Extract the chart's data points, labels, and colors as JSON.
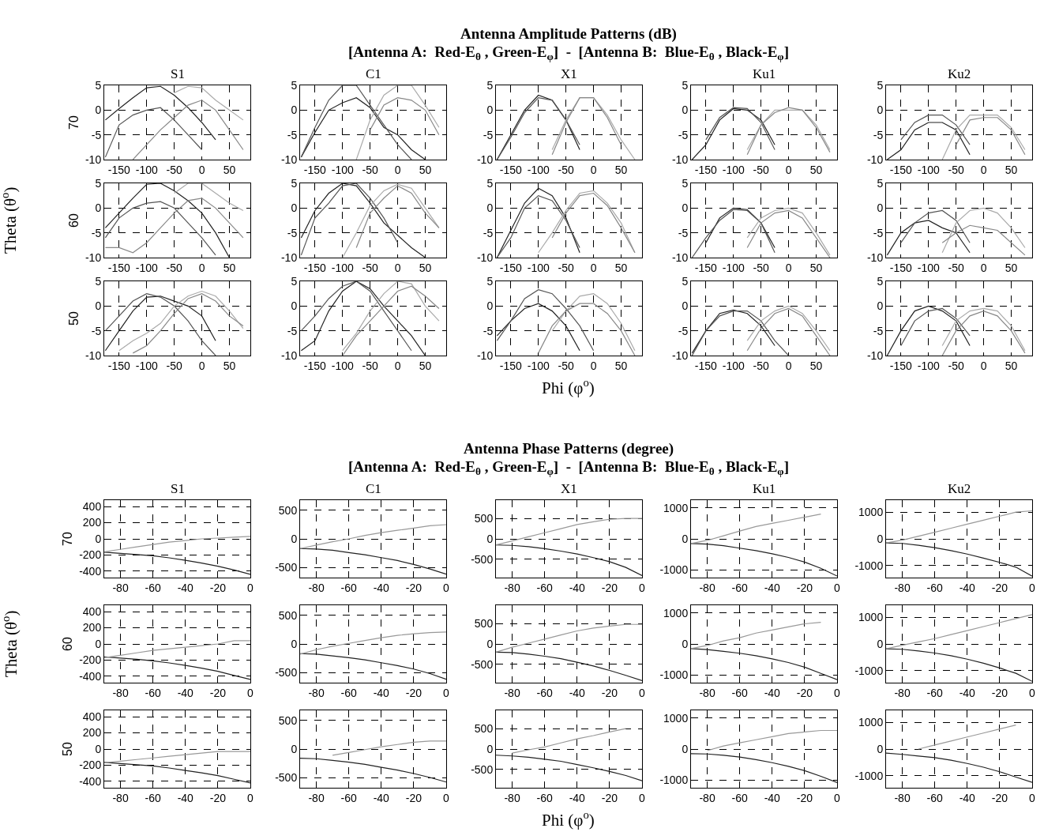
{
  "chart_data": [
    {
      "type": "line",
      "title": "S1",
      "ylabel": "70",
      "annotations": [
        "Antenna Amplitude Patterns (dB)",
        "[Antenna A:  Red-E$_{θ}$ , Green-E$_{φ}$]  -  [Antenna B:  Blue-E$_{θ}$ , Black-E$_{φ}$]",
        "Theta (θ$^{o}$)",
        "Phi (φ$^{o}$)"
      ],
      "xlim": [
        -177,
        88
      ],
      "ylim": [
        -10,
        5
      ],
      "xticks": [
        -150,
        -100,
        -50,
        0,
        50
      ],
      "yticks": [
        -10,
        -5,
        0,
        5
      ],
      "grid": true,
      "x": [
        -175,
        -150,
        -125,
        -100,
        -75,
        -50,
        -25,
        0,
        25,
        50,
        75
      ],
      "series": [
        {
          "color": "#222222",
          "values": [
            -2,
            0.3,
            2.5,
            4.5,
            4.8,
            3,
            0.5,
            -2.5,
            -6,
            null,
            null
          ]
        },
        {
          "color": "#555555",
          "values": [
            -9.5,
            -3,
            -1,
            0,
            0.5,
            -2,
            -5,
            -8,
            null,
            null,
            null
          ]
        },
        {
          "color": "#aaaaaa",
          "values": [
            null,
            null,
            null,
            null,
            null,
            3.5,
            4.8,
            4.5,
            2,
            0,
            -2
          ]
        },
        {
          "color": "#888888",
          "values": [
            null,
            null,
            -10,
            -7,
            -4,
            -1.5,
            1,
            2,
            0,
            -4,
            -8
          ]
        }
      ]
    },
    {
      "type": "line",
      "title": "C1",
      "xlim": [
        -177,
        88
      ],
      "ylim": [
        -10,
        5
      ],
      "xticks": [
        -150,
        -100,
        -50,
        0,
        50
      ],
      "yticks": [
        -10,
        -5,
        0,
        5
      ],
      "grid": true,
      "x": [
        -175,
        -150,
        -125,
        -100,
        -75,
        -50,
        -25,
        0,
        25,
        50,
        75
      ],
      "series": [
        {
          "color": "#222222",
          "values": [
            -9.5,
            -4.5,
            0,
            1.5,
            2.5,
            0.5,
            -3.5,
            -5,
            -8,
            -10,
            null
          ]
        },
        {
          "color": "#555555",
          "values": [
            -9.5,
            -3.5,
            2,
            5,
            5,
            1,
            -3,
            -7,
            -10,
            null,
            null
          ]
        },
        {
          "color": "#aaaaaa",
          "values": [
            null,
            null,
            null,
            null,
            -10,
            -2,
            3,
            5,
            5,
            1,
            -3.5
          ]
        },
        {
          "color": "#888888",
          "values": [
            null,
            null,
            null,
            null,
            null,
            -4,
            1,
            2.5,
            2,
            0,
            -5
          ]
        }
      ]
    },
    {
      "type": "line",
      "title": "X1",
      "xlim": [
        -177,
        88
      ],
      "ylim": [
        -10,
        5
      ],
      "xticks": [
        -150,
        -100,
        -50,
        0,
        50
      ],
      "yticks": [
        -10,
        -5,
        0,
        5
      ],
      "grid": true,
      "x": [
        -175,
        -150,
        -125,
        -100,
        -75,
        -50,
        -25,
        0,
        25,
        50,
        75
      ],
      "series": [
        {
          "color": "#222222",
          "values": [
            -10,
            -5,
            0,
            3,
            2,
            -2,
            -8,
            null,
            null,
            null,
            null
          ]
        },
        {
          "color": "#555555",
          "values": [
            -10,
            -5.5,
            -0.5,
            2.5,
            2,
            -2,
            -7,
            null,
            null,
            null,
            null
          ]
        },
        {
          "color": "#aaaaaa",
          "values": [
            null,
            null,
            null,
            null,
            -8,
            -2,
            2.5,
            2.5,
            -1,
            -6,
            -10
          ]
        },
        {
          "color": "#888888",
          "values": [
            null,
            null,
            null,
            null,
            -9,
            -2.5,
            2.5,
            2.5,
            -1.5,
            -7,
            null
          ]
        }
      ]
    },
    {
      "type": "line",
      "title": "Ku1",
      "xlim": [
        -177,
        88
      ],
      "ylim": [
        -10,
        5
      ],
      "xticks": [
        -150,
        -100,
        -50,
        0,
        50
      ],
      "yticks": [
        -10,
        -5,
        0,
        5
      ],
      "grid": true,
      "x": [
        -175,
        -150,
        -125,
        -100,
        -75,
        -50,
        -25,
        0,
        25,
        50,
        75
      ],
      "series": [
        {
          "color": "#222222",
          "values": [
            -10,
            -7,
            -2,
            0.3,
            0,
            -2,
            -7,
            null,
            null,
            null,
            null
          ]
        },
        {
          "color": "#555555",
          "values": [
            null,
            -6,
            -1.5,
            0.5,
            0.3,
            -2.5,
            -8,
            null,
            null,
            null,
            null
          ]
        },
        {
          "color": "#aaaaaa",
          "values": [
            null,
            null,
            null,
            null,
            -8,
            -3,
            0,
            0,
            0,
            -3,
            -8
          ]
        },
        {
          "color": "#888888",
          "values": [
            null,
            null,
            null,
            null,
            -9,
            -3,
            -0.5,
            0.5,
            0,
            -3.5,
            -8.5
          ]
        }
      ]
    },
    {
      "type": "line",
      "title": "Ku2",
      "xlim": [
        -177,
        88
      ],
      "ylim": [
        -10,
        5
      ],
      "xticks": [
        -150,
        -100,
        -50,
        0,
        50
      ],
      "yticks": [
        -10,
        -5,
        0,
        5
      ],
      "grid": true,
      "x": [
        -175,
        -150,
        -125,
        -100,
        -75,
        -50,
        -25,
        0,
        25,
        50,
        75
      ],
      "series": [
        {
          "color": "#222222",
          "values": [
            -10,
            -8,
            -4,
            -2.5,
            -2.5,
            -4,
            -9,
            null,
            null,
            null,
            null
          ]
        },
        {
          "color": "#555555",
          "values": [
            null,
            -6,
            -2.5,
            -1,
            -1,
            -3,
            -7,
            null,
            null,
            null,
            null
          ]
        },
        {
          "color": "#aaaaaa",
          "values": [
            null,
            null,
            null,
            null,
            -10,
            -4,
            -1,
            -1,
            -1,
            -3.5,
            -8
          ]
        },
        {
          "color": "#888888",
          "values": [
            null,
            null,
            null,
            null,
            null,
            -7,
            -2,
            -1.5,
            -1.5,
            -4,
            -9
          ]
        }
      ]
    },
    {
      "type": "line",
      "ylabel": "60",
      "xlim": [
        -177,
        88
      ],
      "ylim": [
        -10,
        5
      ],
      "xticks": [
        -150,
        -100,
        -50,
        0,
        50
      ],
      "yticks": [
        -10,
        -5,
        0,
        5
      ],
      "grid": true,
      "x": [
        -175,
        -150,
        -125,
        -100,
        -75,
        -50,
        -25,
        0,
        25,
        50,
        75
      ],
      "series": [
        {
          "color": "#222222",
          "values": [
            -4,
            -1,
            2,
            4.8,
            5,
            3.5,
            1.5,
            -1,
            -5,
            -10,
            null
          ]
        },
        {
          "color": "#555555",
          "values": [
            -6,
            -2,
            0,
            1,
            1.3,
            0,
            -3,
            -6,
            -9.5,
            null,
            null
          ]
        },
        {
          "color": "#aaaaaa",
          "values": [
            null,
            null,
            null,
            null,
            null,
            3,
            5,
            5,
            3,
            1,
            -0.5
          ]
        },
        {
          "color": "#888888",
          "values": [
            -8,
            -8,
            -9,
            -7,
            -4,
            -1,
            1.5,
            2,
            0,
            -3,
            -6
          ]
        }
      ]
    },
    {
      "type": "line",
      "xlim": [
        -177,
        88
      ],
      "ylim": [
        -10,
        5
      ],
      "xticks": [
        -150,
        -100,
        -50,
        0,
        50
      ],
      "yticks": [
        -10,
        -5,
        0,
        5
      ],
      "grid": true,
      "x": [
        -175,
        -150,
        -125,
        -100,
        -75,
        -50,
        -25,
        0,
        25,
        50,
        75
      ],
      "series": [
        {
          "color": "#222222",
          "values": [
            -6,
            -0.5,
            3,
            5,
            4.5,
            1,
            -3,
            -5.5,
            -8,
            -10,
            null
          ]
        },
        {
          "color": "#555555",
          "values": [
            -9.5,
            -2,
            1,
            4.5,
            5,
            2,
            -2,
            -7,
            null,
            null,
            null
          ]
        },
        {
          "color": "#aaaaaa",
          "values": [
            null,
            null,
            null,
            -10,
            -5,
            0.5,
            3.5,
            4.8,
            4,
            0,
            -4
          ]
        },
        {
          "color": "#888888",
          "values": [
            null,
            null,
            null,
            null,
            -8,
            -1,
            2,
            4.5,
            3,
            -1,
            -4
          ]
        }
      ]
    },
    {
      "type": "line",
      "xlim": [
        -177,
        88
      ],
      "ylim": [
        -10,
        5
      ],
      "xticks": [
        -150,
        -100,
        -50,
        0,
        50
      ],
      "yticks": [
        -10,
        -5,
        0,
        5
      ],
      "grid": true,
      "x": [
        -175,
        -150,
        -125,
        -100,
        -75,
        -50,
        -25,
        0,
        25,
        50,
        75
      ],
      "series": [
        {
          "color": "#222222",
          "values": [
            -10,
            -4.5,
            1,
            4,
            2.5,
            -2,
            -9,
            null,
            null,
            null,
            null
          ]
        },
        {
          "color": "#555555",
          "values": [
            -10,
            -6,
            0,
            2.5,
            1.5,
            -2.5,
            -8,
            null,
            null,
            null,
            null
          ]
        },
        {
          "color": "#aaaaaa",
          "values": [
            null,
            null,
            null,
            -9,
            -5,
            -0.5,
            3,
            3.5,
            1,
            -3,
            -9
          ]
        },
        {
          "color": "#888888",
          "values": [
            null,
            null,
            null,
            null,
            -6,
            -1,
            2.5,
            3,
            0.5,
            -4,
            -9
          ]
        }
      ]
    },
    {
      "type": "line",
      "xlim": [
        -177,
        88
      ],
      "ylim": [
        -10,
        5
      ],
      "xticks": [
        -150,
        -100,
        -50,
        0,
        50
      ],
      "yticks": [
        -10,
        -5,
        0,
        5
      ],
      "grid": true,
      "x": [
        -175,
        -150,
        -125,
        -100,
        -75,
        -50,
        -25,
        0,
        25,
        50,
        75
      ],
      "series": [
        {
          "color": "#222222",
          "values": [
            null,
            -7,
            -2,
            0,
            -0.3,
            -3,
            -8,
            null,
            null,
            null,
            null
          ]
        },
        {
          "color": "#555555",
          "values": [
            -10,
            -6,
            -2.5,
            -0.3,
            -0.5,
            -3,
            -9,
            null,
            null,
            null,
            null
          ]
        },
        {
          "color": "#aaaaaa",
          "values": [
            null,
            null,
            null,
            null,
            -6,
            -2,
            -0.5,
            0,
            -1,
            -5,
            -9.5
          ]
        },
        {
          "color": "#888888",
          "values": [
            null,
            null,
            null,
            null,
            -8,
            -3,
            -1,
            -0.5,
            -2,
            -6,
            -10
          ]
        }
      ]
    },
    {
      "type": "line",
      "xlim": [
        -177,
        88
      ],
      "ylim": [
        -10,
        5
      ],
      "xticks": [
        -150,
        -100,
        -50,
        0,
        50
      ],
      "yticks": [
        -10,
        -5,
        0,
        5
      ],
      "grid": true,
      "x": [
        -175,
        -150,
        -125,
        -100,
        -75,
        -50,
        -25,
        0,
        25,
        50,
        75
      ],
      "series": [
        {
          "color": "#222222",
          "values": [
            -9.5,
            -5,
            -3,
            -2.5,
            -4,
            -5,
            -9,
            null,
            null,
            null,
            null
          ]
        },
        {
          "color": "#555555",
          "values": [
            null,
            -7,
            -3,
            -1,
            -0.5,
            -2.5,
            -7,
            null,
            null,
            null,
            null
          ]
        },
        {
          "color": "#aaaaaa",
          "values": [
            null,
            null,
            null,
            null,
            -9,
            -3,
            -0.5,
            0,
            -1,
            -4,
            -8
          ]
        },
        {
          "color": "#888888",
          "values": [
            null,
            null,
            null,
            null,
            -7,
            -5,
            -3.5,
            -4,
            -4.5,
            -7,
            -9.5
          ]
        }
      ]
    },
    {
      "type": "line",
      "ylabel": "50",
      "xlim": [
        -177,
        88
      ],
      "ylim": [
        -10,
        5
      ],
      "xticks": [
        -150,
        -100,
        -50,
        0,
        50
      ],
      "yticks": [
        -10,
        -5,
        0,
        5
      ],
      "grid": true,
      "x": [
        -175,
        -150,
        -125,
        -100,
        -75,
        -50,
        -25,
        0,
        25,
        50,
        75
      ],
      "series": [
        {
          "color": "#222222",
          "values": [
            -9,
            -5,
            -1,
            1.8,
            2,
            1,
            0,
            -2,
            -7,
            null,
            null
          ]
        },
        {
          "color": "#555555",
          "values": [
            -5,
            -2,
            1,
            2.5,
            1.8,
            0,
            -3,
            -7,
            -10,
            null,
            null
          ]
        },
        {
          "color": "#aaaaaa",
          "values": [
            null,
            -9,
            -7,
            -5.5,
            -3.5,
            0,
            2,
            3,
            2,
            -1,
            -4.5
          ]
        },
        {
          "color": "#888888",
          "values": [
            null,
            null,
            -9.5,
            -8,
            -5,
            -1.5,
            1.5,
            2.5,
            1,
            -2,
            -4
          ]
        }
      ]
    },
    {
      "type": "line",
      "xlim": [
        -177,
        88
      ],
      "ylim": [
        -10,
        5
      ],
      "xticks": [
        -150,
        -100,
        -50,
        0,
        50
      ],
      "yticks": [
        -10,
        -5,
        0,
        5
      ],
      "grid": true,
      "x": [
        -175,
        -150,
        -125,
        -100,
        -75,
        -50,
        -25,
        0,
        25,
        50,
        75
      ],
      "series": [
        {
          "color": "#222222",
          "values": [
            -9,
            -7,
            -1,
            3,
            5,
            3.5,
            0,
            -3,
            -6,
            -10,
            null
          ]
        },
        {
          "color": "#555555",
          "values": [
            -5,
            -2,
            1.5,
            4,
            5,
            3,
            -1,
            -5,
            -9,
            null,
            null
          ]
        },
        {
          "color": "#aaaaaa",
          "values": [
            null,
            null,
            null,
            -9,
            -5.5,
            -1,
            2.5,
            5,
            4.5,
            0,
            -3
          ]
        },
        {
          "color": "#888888",
          "values": [
            null,
            null,
            null,
            -10,
            -6,
            -3,
            0,
            3,
            4,
            2,
            -0.5
          ]
        }
      ]
    },
    {
      "type": "line",
      "xlim": [
        -177,
        88
      ],
      "ylim": [
        -10,
        5
      ],
      "xticks": [
        -150,
        -100,
        -50,
        0,
        50
      ],
      "yticks": [
        -10,
        -5,
        0,
        5
      ],
      "grid": true,
      "x": [
        -175,
        -150,
        -125,
        -100,
        -75,
        -50,
        -25,
        0,
        25,
        50,
        75
      ],
      "series": [
        {
          "color": "#222222",
          "values": [
            -6,
            -3,
            -0.5,
            0.5,
            -1,
            -4,
            -9,
            null,
            null,
            null,
            null
          ]
        },
        {
          "color": "#555555",
          "values": [
            -7,
            -3,
            1.5,
            3.3,
            2.5,
            -0.5,
            -4,
            -9,
            null,
            null,
            null
          ]
        },
        {
          "color": "#aaaaaa",
          "values": [
            null,
            null,
            null,
            null,
            -5,
            -1,
            2,
            2.5,
            0.5,
            -3.5,
            -9
          ]
        },
        {
          "color": "#888888",
          "values": [
            null,
            null,
            null,
            -9.5,
            -4,
            -1,
            0.5,
            0.5,
            -1.5,
            -5,
            -10
          ]
        }
      ]
    },
    {
      "type": "line",
      "xlim": [
        -177,
        88
      ],
      "ylim": [
        -10,
        5
      ],
      "xticks": [
        -150,
        -100,
        -50,
        0,
        50
      ],
      "yticks": [
        -10,
        -5,
        0,
        5
      ],
      "grid": true,
      "x": [
        -175,
        -150,
        -125,
        -100,
        -75,
        -50,
        -25,
        0,
        25,
        50,
        75
      ],
      "series": [
        {
          "color": "#222222",
          "values": [
            -9.5,
            -5,
            -1.5,
            -0.8,
            -1.5,
            -4,
            -8,
            null,
            null,
            null,
            null
          ]
        },
        {
          "color": "#555555",
          "values": [
            -10,
            -5,
            -2,
            -1,
            -1,
            -3,
            -7,
            -10,
            null,
            null,
            null
          ]
        },
        {
          "color": "#aaaaaa",
          "values": [
            null,
            null,
            null,
            null,
            -7,
            -3,
            -1,
            0,
            -1.5,
            -5,
            -9
          ]
        },
        {
          "color": "#888888",
          "values": [
            null,
            null,
            null,
            null,
            -9,
            -4.5,
            -1.5,
            -0.5,
            -2,
            -6,
            -10
          ]
        }
      ]
    },
    {
      "type": "line",
      "xlim": [
        -177,
        88
      ],
      "ylim": [
        -10,
        5
      ],
      "xticks": [
        -150,
        -100,
        -50,
        0,
        50
      ],
      "yticks": [
        -10,
        -5,
        0,
        5
      ],
      "grid": true,
      "x": [
        -175,
        -150,
        -125,
        -100,
        -75,
        -50,
        -25,
        0,
        25,
        50,
        75
      ],
      "series": [
        {
          "color": "#222222",
          "values": [
            -10,
            -5,
            -1,
            0,
            -1,
            -3,
            -8,
            null,
            null,
            null,
            null
          ]
        },
        {
          "color": "#555555",
          "values": [
            null,
            -8,
            -3,
            -1,
            -0.5,
            -2.5,
            -6,
            null,
            null,
            null,
            null
          ]
        },
        {
          "color": "#aaaaaa",
          "values": [
            null,
            null,
            null,
            null,
            -8,
            -3,
            -1,
            -0.5,
            -1,
            -4,
            -9
          ]
        },
        {
          "color": "#888888",
          "values": [
            null,
            null,
            null,
            null,
            -10,
            -5,
            -2,
            -1,
            -2,
            -5,
            -9.5
          ]
        }
      ]
    },
    {
      "type": "line",
      "title": "S1",
      "ylabel": "70",
      "annotations": [
        "Antenna Phase Patterns (degree)",
        "[Antenna A:  Red-E$_{θ}$ , Green-E$_{φ}$]  -  [Antenna B:  Blue-E$_{θ}$ , Black-E$_{φ}$]",
        "Theta (θ$^{o}$)",
        "Phi (φ$^{o}$)"
      ],
      "xlim": [
        -90,
        0
      ],
      "ylim": [
        -480,
        480
      ],
      "xticks": [
        -80,
        -60,
        -40,
        -20,
        0
      ],
      "yticks": [
        -400,
        -200,
        0,
        200,
        400
      ],
      "grid": true,
      "x": [
        -90,
        -80,
        -70,
        -60,
        -50,
        -40,
        -30,
        -20,
        -10,
        0
      ],
      "series": [
        {
          "color": "#222222",
          "values": [
            -165,
            -180,
            -195,
            -210,
            -235,
            -265,
            -300,
            -340,
            -385,
            -440
          ]
        },
        {
          "color": "#999999",
          "values": [
            -160,
            -130,
            -100,
            -70,
            -40,
            -20,
            0,
            10,
            20,
            30
          ]
        }
      ]
    },
    {
      "type": "line",
      "title": "C1",
      "xlim": [
        -90,
        0
      ],
      "ylim": [
        -680,
        680
      ],
      "xticks": [
        -80,
        -60,
        -40,
        -20,
        0
      ],
      "yticks": [
        -500,
        0,
        500
      ],
      "grid": true,
      "x": [
        -90,
        -80,
        -70,
        -60,
        -50,
        -40,
        -30,
        -20,
        -10,
        0
      ],
      "series": [
        {
          "color": "#222222",
          "values": [
            -170,
            -180,
            -200,
            -240,
            -280,
            -330,
            -380,
            -450,
            -530,
            -620
          ]
        },
        {
          "color": "#999999",
          "values": [
            -170,
            -110,
            -50,
            0,
            60,
            110,
            150,
            190,
            230,
            250
          ]
        }
      ]
    },
    {
      "type": "line",
      "title": "X1",
      "xlim": [
        -90,
        0
      ],
      "ylim": [
        -950,
        950
      ],
      "xticks": [
        -80,
        -60,
        -40,
        -20,
        0
      ],
      "yticks": [
        -500,
        0,
        500
      ],
      "grid": true,
      "x": [
        -90,
        -80,
        -70,
        -60,
        -50,
        -40,
        -30,
        -20,
        -10,
        0
      ],
      "series": [
        {
          "color": "#222222",
          "values": [
            -150,
            -160,
            -190,
            -240,
            -300,
            -370,
            -460,
            -560,
            -700,
            -900
          ]
        },
        {
          "color": "#999999",
          "values": [
            -150,
            -50,
            50,
            150,
            250,
            350,
            420,
            480,
            500,
            500
          ]
        }
      ]
    },
    {
      "type": "line",
      "title": "Ku1",
      "xlim": [
        -90,
        0
      ],
      "ylim": [
        -1250,
        1250
      ],
      "xticks": [
        -80,
        -60,
        -40,
        -20,
        0
      ],
      "yticks": [
        -1000,
        0,
        1000
      ],
      "grid": true,
      "x": [
        -90,
        -80,
        -70,
        -60,
        -50,
        -40,
        -30,
        -20,
        -10,
        0
      ],
      "series": [
        {
          "color": "#222222",
          "values": [
            -150,
            -170,
            -220,
            -300,
            -380,
            -480,
            -600,
            -750,
            -950,
            -1200
          ]
        },
        {
          "color": "#999999",
          "values": [
            -150,
            -50,
            100,
            250,
            400,
            500,
            600,
            700,
            800,
            null
          ]
        }
      ]
    },
    {
      "type": "line",
      "title": "Ku2",
      "xlim": [
        -90,
        0
      ],
      "ylim": [
        -1450,
        1450
      ],
      "xticks": [
        -80,
        -60,
        -40,
        -20,
        0
      ],
      "yticks": [
        -1000,
        0,
        1000
      ],
      "grid": true,
      "x": [
        -90,
        -80,
        -70,
        -60,
        -50,
        -40,
        -30,
        -20,
        -10,
        0
      ],
      "series": [
        {
          "color": "#222222",
          "values": [
            -150,
            -170,
            -240,
            -330,
            -440,
            -570,
            -720,
            -880,
            -1060,
            -1400
          ]
        },
        {
          "color": "#999999",
          "values": [
            -150,
            -50,
            100,
            250,
            400,
            550,
            700,
            850,
            1000,
            1050
          ]
        }
      ]
    },
    {
      "type": "line",
      "ylabel": "60",
      "xlim": [
        -90,
        0
      ],
      "ylim": [
        -480,
        480
      ],
      "xticks": [
        -80,
        -60,
        -40,
        -20,
        0
      ],
      "yticks": [
        -400,
        -200,
        0,
        200,
        400
      ],
      "grid": true,
      "x": [
        -90,
        -80,
        -70,
        -60,
        -50,
        -40,
        -30,
        -20,
        -10,
        0
      ],
      "series": [
        {
          "color": "#222222",
          "values": [
            -160,
            -175,
            -190,
            -210,
            -235,
            -265,
            -300,
            -340,
            -390,
            -440
          ]
        },
        {
          "color": "#999999",
          "values": [
            -170,
            -140,
            -110,
            -80,
            -60,
            -40,
            -20,
            0,
            40,
            40
          ]
        }
      ]
    },
    {
      "type": "line",
      "xlim": [
        -90,
        0
      ],
      "ylim": [
        -680,
        680
      ],
      "xticks": [
        -80,
        -60,
        -40,
        -20,
        0
      ],
      "yticks": [
        -500,
        0,
        500
      ],
      "grid": true,
      "x": [
        -90,
        -80,
        -70,
        -60,
        -50,
        -40,
        -30,
        -20,
        -10,
        0
      ],
      "series": [
        {
          "color": "#222222",
          "values": [
            -170,
            -180,
            -210,
            -240,
            -280,
            -330,
            -380,
            -440,
            -520,
            -620
          ]
        },
        {
          "color": "#999999",
          "values": [
            -180,
            -100,
            -40,
            10,
            60,
            110,
            150,
            180,
            200,
            210
          ]
        }
      ]
    },
    {
      "type": "line",
      "xlim": [
        -90,
        0
      ],
      "ylim": [
        -950,
        950
      ],
      "xticks": [
        -80,
        -60,
        -40,
        -20,
        0
      ],
      "yticks": [
        -500,
        0,
        500
      ],
      "grid": true,
      "x": [
        -90,
        -80,
        -70,
        -60,
        -50,
        -40,
        -30,
        -20,
        -10,
        0
      ],
      "series": [
        {
          "color": "#222222",
          "values": [
            -200,
            -210,
            -250,
            -300,
            -360,
            -450,
            -540,
            -650,
            -770,
            -900
          ]
        },
        {
          "color": "#999999",
          "values": [
            -200,
            -80,
            20,
            120,
            220,
            320,
            390,
            440,
            480,
            480
          ]
        }
      ]
    },
    {
      "type": "line",
      "xlim": [
        -90,
        0
      ],
      "ylim": [
        -1250,
        1250
      ],
      "xticks": [
        -80,
        -60,
        -40,
        -20,
        0
      ],
      "yticks": [
        -1000,
        0,
        1000
      ],
      "grid": true,
      "x": [
        -90,
        -80,
        -70,
        -60,
        -50,
        -40,
        -30,
        -20,
        -10,
        0
      ],
      "series": [
        {
          "color": "#222222",
          "values": [
            -150,
            -180,
            -240,
            -300,
            -380,
            -480,
            -600,
            -750,
            -950,
            -1150
          ]
        },
        {
          "color": "#999999",
          "values": [
            -150,
            -50,
            100,
            200,
            350,
            450,
            550,
            650,
            700,
            null
          ]
        }
      ]
    },
    {
      "type": "line",
      "xlim": [
        -90,
        0
      ],
      "ylim": [
        -1450,
        1450
      ],
      "xticks": [
        -80,
        -60,
        -40,
        -20,
        0
      ],
      "yticks": [
        -1000,
        0,
        1000
      ],
      "grid": true,
      "x": [
        -90,
        -80,
        -70,
        -60,
        -50,
        -40,
        -30,
        -20,
        -10,
        0
      ],
      "series": [
        {
          "color": "#222222",
          "values": [
            -180,
            -200,
            -260,
            -340,
            -440,
            -570,
            -720,
            -900,
            -1100,
            -1400
          ]
        },
        {
          "color": "#999999",
          "values": [
            -180,
            -50,
            80,
            200,
            350,
            500,
            650,
            800,
            950,
            1100
          ]
        }
      ]
    },
    {
      "type": "line",
      "ylabel": "50",
      "xlim": [
        -90,
        0
      ],
      "ylim": [
        -480,
        480
      ],
      "xticks": [
        -80,
        -60,
        -40,
        -20,
        0
      ],
      "yticks": [
        -400,
        -200,
        0,
        200,
        400
      ],
      "grid": true,
      "x": [
        -90,
        -80,
        -70,
        -60,
        -50,
        -40,
        -30,
        -20,
        -10,
        0
      ],
      "series": [
        {
          "color": "#222222",
          "values": [
            -165,
            -180,
            -195,
            -210,
            -235,
            -265,
            -295,
            -330,
            -375,
            -420
          ]
        },
        {
          "color": "#999999",
          "values": [
            -170,
            -150,
            -130,
            -110,
            -90,
            -70,
            -50,
            -30,
            -30,
            -30
          ]
        }
      ]
    },
    {
      "type": "line",
      "xlim": [
        -90,
        0
      ],
      "ylim": [
        -680,
        680
      ],
      "xticks": [
        -80,
        -60,
        -40,
        -20,
        0
      ],
      "yticks": [
        -500,
        0,
        500
      ],
      "grid": true,
      "x": [
        -90,
        -80,
        -70,
        -60,
        -50,
        -40,
        -30,
        -20,
        -10,
        0
      ],
      "series": [
        {
          "color": "#222222",
          "values": [
            -160,
            -170,
            -200,
            -230,
            -270,
            -320,
            -370,
            -430,
            -500,
            -580
          ]
        },
        {
          "color": "#999999",
          "values": [
            null,
            null,
            -110,
            -60,
            -10,
            40,
            80,
            120,
            140,
            140
          ]
        }
      ]
    },
    {
      "type": "line",
      "xlim": [
        -90,
        0
      ],
      "ylim": [
        -950,
        950
      ],
      "xticks": [
        -80,
        -60,
        -40,
        -20,
        0
      ],
      "yticks": [
        -500,
        0,
        500
      ],
      "grid": true,
      "x": [
        -90,
        -80,
        -70,
        -60,
        -50,
        -40,
        -30,
        -20,
        -10,
        0
      ],
      "series": [
        {
          "color": "#222222",
          "values": [
            -150,
            -170,
            -200,
            -250,
            -300,
            -380,
            -460,
            -550,
            -650,
            -780
          ]
        },
        {
          "color": "#999999",
          "values": [
            null,
            -100,
            -20,
            50,
            150,
            250,
            330,
            420,
            500,
            null
          ]
        }
      ]
    },
    {
      "type": "line",
      "xlim": [
        -90,
        0
      ],
      "ylim": [
        -1250,
        1250
      ],
      "xticks": [
        -80,
        -60,
        -40,
        -20,
        0
      ],
      "yticks": [
        -1000,
        0,
        1000
      ],
      "grid": true,
      "x": [
        -90,
        -80,
        -70,
        -60,
        -50,
        -40,
        -30,
        -20,
        -10,
        0
      ],
      "series": [
        {
          "color": "#222222",
          "values": [
            -150,
            -160,
            -200,
            -260,
            -340,
            -440,
            -560,
            -700,
            -880,
            -1080
          ]
        },
        {
          "color": "#999999",
          "values": [
            null,
            -50,
            100,
            200,
            300,
            400,
            500,
            550,
            600,
            600
          ]
        }
      ]
    },
    {
      "type": "line",
      "xlim": [
        -90,
        0
      ],
      "ylim": [
        -1450,
        1450
      ],
      "xticks": [
        -80,
        -60,
        -40,
        -20,
        0
      ],
      "yticks": [
        -1000,
        0,
        1000
      ],
      "grid": true,
      "x": [
        -90,
        -80,
        -70,
        -60,
        -50,
        -40,
        -30,
        -20,
        -10,
        0
      ],
      "series": [
        {
          "color": "#222222",
          "values": [
            -150,
            -200,
            -260,
            -320,
            -420,
            -540,
            -680,
            -850,
            -1050,
            -1250
          ]
        },
        {
          "color": "#999999",
          "values": [
            null,
            null,
            0,
            150,
            300,
            450,
            600,
            750,
            900,
            null
          ]
        }
      ]
    }
  ]
}
